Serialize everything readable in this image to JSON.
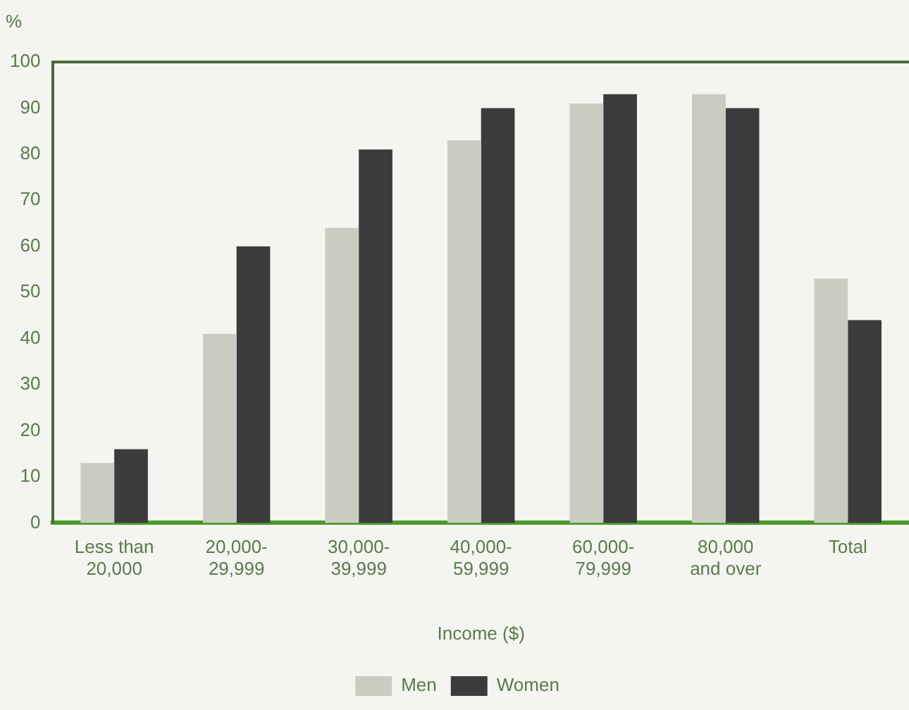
{
  "chart_data": {
    "type": "bar",
    "xlabel": "Income ($)",
    "ylabel": "%",
    "categories": [
      "Less than\n20,000",
      "20,000-\n29,999",
      "30,000-\n39,999",
      "40,000-\n59,999",
      "60,000-\n79,999",
      "80,000\nand over",
      "Total"
    ],
    "series": [
      {
        "name": "Men",
        "color": "#c9ccc0",
        "values": [
          13,
          41,
          64,
          83,
          91,
          93,
          53
        ]
      },
      {
        "name": "Women",
        "color": "#3b3b3d",
        "values": [
          16,
          60,
          81,
          90,
          93,
          90,
          44
        ]
      }
    ],
    "ylim": [
      0,
      100
    ],
    "yticks": [
      0,
      10,
      20,
      30,
      40,
      50,
      60,
      70,
      80,
      90,
      100
    ],
    "grid": false,
    "legend": "bottom"
  }
}
